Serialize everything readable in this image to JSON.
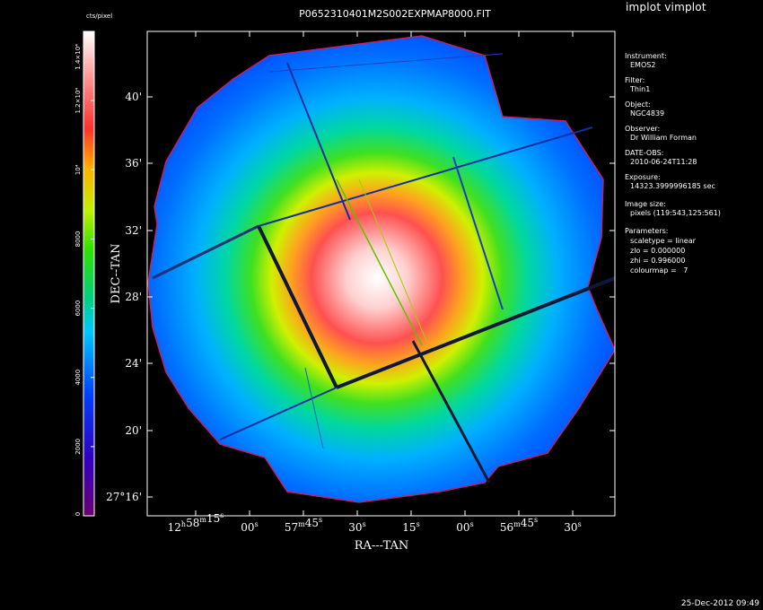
{
  "app": {
    "title": "implot vimplot"
  },
  "plot": {
    "title": "P0652310401M2S002EXPMAP8000.FIT",
    "xlabel": "RA---TAN",
    "ylabel": "DEC--TAN",
    "x_ticks": [
      {
        "label": "12h58m15s",
        "parts": [
          "12",
          "h",
          "58",
          "m",
          "15",
          "s"
        ]
      },
      {
        "label": "00s",
        "parts": [
          "00",
          "s"
        ]
      },
      {
        "label": "57m45s",
        "parts": [
          "57",
          "m",
          "45",
          "s"
        ]
      },
      {
        "label": "30s",
        "parts": [
          "30",
          "s"
        ]
      },
      {
        "label": "15s",
        "parts": [
          "15",
          "s"
        ]
      },
      {
        "label": "00s",
        "parts": [
          "00",
          "s"
        ]
      },
      {
        "label": "56m45s",
        "parts": [
          "56",
          "m",
          "45",
          "s"
        ]
      },
      {
        "label": "30s",
        "parts": [
          "30",
          "s"
        ]
      }
    ],
    "y_ticks": [
      "40'",
      "36'",
      "32'",
      "28'",
      "24'",
      "20'",
      "27°16'"
    ],
    "colormap": "rainbow (colourmap 7)"
  },
  "colorbar": {
    "unit": "cts/pixel",
    "ticks": [
      "0",
      "2000",
      "4000",
      "6000",
      "8000",
      "10⁴",
      "1.2×10⁴",
      "1.4×10⁴"
    ],
    "colors": [
      "#6a0070",
      "#3000c0",
      "#0040ff",
      "#00c8ff",
      "#00d080",
      "#30e000",
      "#c0f000",
      "#ffb000",
      "#ff3030",
      "#ff9090",
      "#ffffff"
    ]
  },
  "meta": [
    {
      "key": "Instrument:",
      "value": "EMOS2"
    },
    {
      "key": "Filter:",
      "value": "Thin1"
    },
    {
      "key": "Object:",
      "value": "NGC4839"
    },
    {
      "key": "Observer:",
      "value": "Dr William Forman"
    },
    {
      "key": "DATE-OBS:",
      "value": "2010-06-24T11:28"
    },
    {
      "key": "Exposure:",
      "value": "14323.3999996185 sec"
    },
    {
      "key": "Image size:",
      "value": "pixels (119:543,125:561)"
    }
  ],
  "parameters": {
    "heading": "Parameters:",
    "lines": [
      "scaletype = linear",
      "zlo = 0.000000",
      "zhi = 0.996000",
      "colourmap =   7"
    ]
  },
  "timestamp": "25-Dec-2012 09:49"
}
